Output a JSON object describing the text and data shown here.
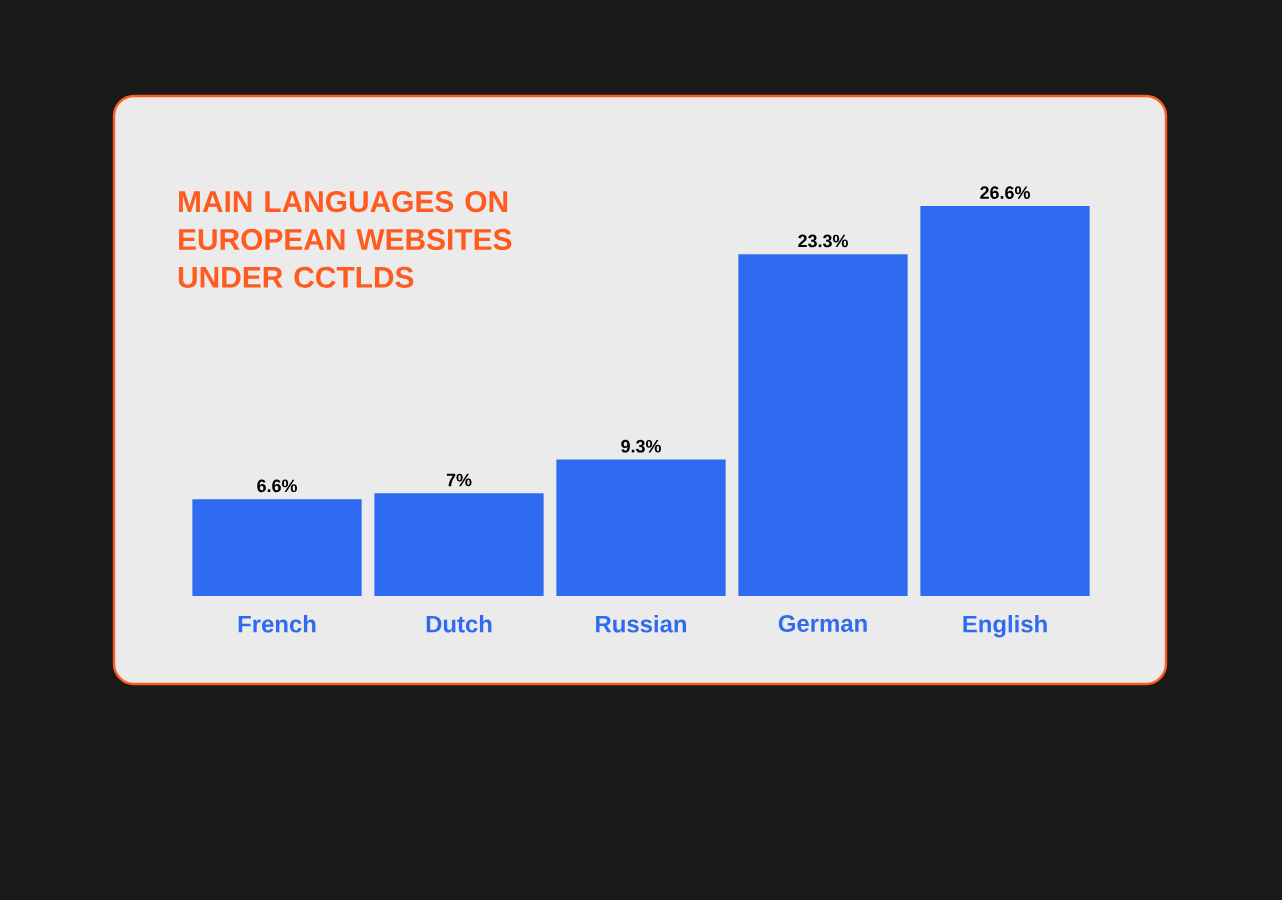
{
  "chart_data": {
    "type": "bar",
    "title": "MAIN LANGUAGES ON EUROPEAN WEBSITES UNDER CCTLDS",
    "categories": [
      "French",
      "Dutch",
      "Russian",
      "German",
      "English"
    ],
    "values": [
      6.6,
      7,
      9.3,
      23.3,
      26.6
    ],
    "value_labels": [
      "6.6%",
      "7%",
      "9.3%",
      "23.3%",
      "26.6%"
    ],
    "color": "#2f6bf0"
  }
}
